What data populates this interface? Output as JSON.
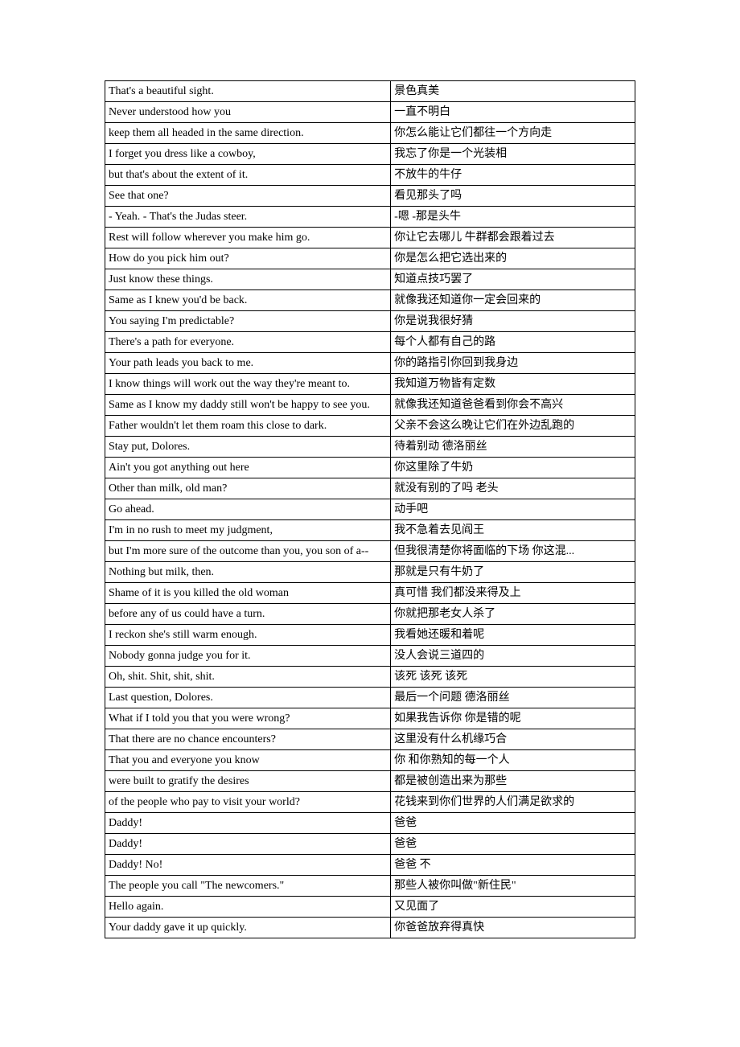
{
  "table": {
    "border_color": "#000000",
    "background_color": "#ffffff",
    "text_color": "#000000",
    "font_size": 14,
    "columns": [
      "english",
      "chinese"
    ],
    "column_widths": [
      0.54,
      0.46
    ],
    "rows": [
      [
        "That's a beautiful sight.",
        "景色真美"
      ],
      [
        "Never understood how you",
        "一直不明白"
      ],
      [
        "keep them all headed in the same direction.",
        "你怎么能让它们都往一个方向走"
      ],
      [
        "I forget you dress like a cowboy,",
        "我忘了你是一个光装相"
      ],
      [
        "but that's about the extent of it.",
        "不放牛的牛仔"
      ],
      [
        "See that one?",
        "看见那头了吗"
      ],
      [
        "- Yeah. - That's the Judas steer.",
        "-嗯   -那是头牛"
      ],
      [
        "Rest will follow wherever you make him go.",
        "你让它去哪儿   牛群都会跟着过去"
      ],
      [
        "How do you pick him out?",
        "你是怎么把它选出来的"
      ],
      [
        "Just know these things.",
        "知道点技巧罢了"
      ],
      [
        "Same as I knew you'd be back.",
        "就像我还知道你一定会回来的"
      ],
      [
        "You saying I'm predictable?",
        "你是说我很好猜"
      ],
      [
        "There's a path for everyone.",
        "每个人都有自己的路"
      ],
      [
        "Your path leads you back to me.",
        "你的路指引你回到我身边"
      ],
      [
        "I know things will work out the way they're meant to.",
        "我知道万物皆有定数"
      ],
      [
        "Same as I know my daddy still won't be happy to see you.",
        "就像我还知道爸爸看到你会不高兴"
      ],
      [
        "Father wouldn't let them roam this close to dark.",
        "父亲不会这么晚让它们在外边乱跑的"
      ],
      [
        "Stay put, Dolores.",
        "待着别动   德洛丽丝"
      ],
      [
        "Ain't you got anything out here",
        "你这里除了牛奶"
      ],
      [
        "Other than milk, old man?",
        "就没有别的了吗   老头"
      ],
      [
        "Go ahead.",
        "动手吧"
      ],
      [
        "I'm in no rush to meet my judgment,",
        "我不急着去见阎王"
      ],
      [
        "but I'm more sure of the outcome than you, you son of a--",
        "但我很清楚你将面临的下场   你这混..."
      ],
      [
        "Nothing but milk, then.",
        "那就是只有牛奶了"
      ],
      [
        "Shame of it is you killed the old woman",
        "真可惜   我们都没来得及上"
      ],
      [
        "before any of us could have a turn.",
        "你就把那老女人杀了"
      ],
      [
        "I reckon she's still warm enough.",
        "我看她还暖和着呢"
      ],
      [
        "Nobody gonna judge you for it.",
        "没人会说三道四的"
      ],
      [
        "Oh, shit. Shit, shit, shit.",
        "该死   该死   该死"
      ],
      [
        "Last question, Dolores.",
        "最后一个问题   德洛丽丝"
      ],
      [
        "What if I told you that you were wrong?",
        "如果我告诉你   你是错的呢"
      ],
      [
        "That there are no chance encounters?",
        "这里没有什么机缘巧合"
      ],
      [
        "That you and everyone you know",
        "你   和你熟知的每一个人"
      ],
      [
        "were built to gratify the desires",
        "都是被创造出来为那些"
      ],
      [
        "of the people who pay to visit your world?",
        "花钱来到你们世界的人们满足欲求的"
      ],
      [
        "Daddy!",
        "爸爸"
      ],
      [
        "Daddy!",
        "爸爸"
      ],
      [
        "Daddy! No!",
        "爸爸   不"
      ],
      [
        "The people you call \"The newcomers.\"",
        "那些人被你叫做\"新住民\""
      ],
      [
        "Hello again.",
        "又见面了"
      ],
      [
        "Your daddy gave it up quickly.",
        "你爸爸放弃得真快"
      ]
    ]
  }
}
